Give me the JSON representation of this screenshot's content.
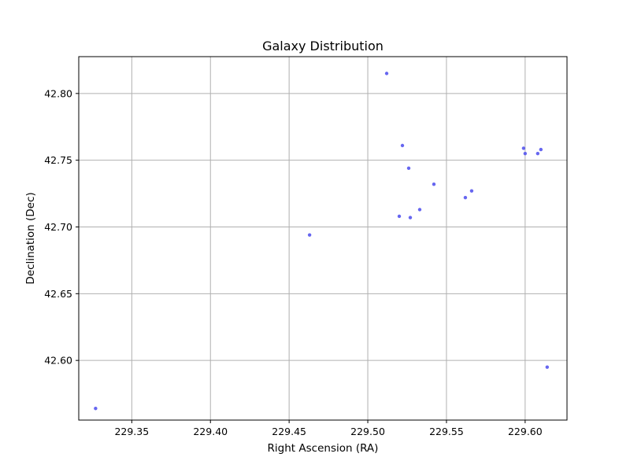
{
  "chart_data": {
    "type": "scatter",
    "title": "Galaxy Distribution",
    "xlabel": "Right Ascension (RA)",
    "ylabel": "Declination (Dec)",
    "xlim": [
      229.3163,
      229.6266
    ],
    "ylim": [
      42.5553,
      42.8276
    ],
    "grid": true,
    "marker_color": "#5555ee",
    "x_ticks": [
      {
        "value": 229.35,
        "label": "229.35"
      },
      {
        "value": 229.4,
        "label": "229.40"
      },
      {
        "value": 229.45,
        "label": "229.45"
      },
      {
        "value": 229.5,
        "label": "229.50"
      },
      {
        "value": 229.55,
        "label": "229.55"
      },
      {
        "value": 229.6,
        "label": "229.60"
      }
    ],
    "y_ticks": [
      {
        "value": 42.6,
        "label": "42.60"
      },
      {
        "value": 42.65,
        "label": "42.65"
      },
      {
        "value": 42.7,
        "label": "42.70"
      },
      {
        "value": 42.75,
        "label": "42.75"
      },
      {
        "value": 42.8,
        "label": "42.80"
      }
    ],
    "points": [
      {
        "x": 229.512,
        "y": 42.815
      },
      {
        "x": 229.522,
        "y": 42.761
      },
      {
        "x": 229.526,
        "y": 42.744
      },
      {
        "x": 229.542,
        "y": 42.732
      },
      {
        "x": 229.566,
        "y": 42.727
      },
      {
        "x": 229.562,
        "y": 42.722
      },
      {
        "x": 229.533,
        "y": 42.713
      },
      {
        "x": 229.52,
        "y": 42.708
      },
      {
        "x": 229.527,
        "y": 42.707
      },
      {
        "x": 229.463,
        "y": 42.694
      },
      {
        "x": 229.599,
        "y": 42.759
      },
      {
        "x": 229.6,
        "y": 42.755
      },
      {
        "x": 229.61,
        "y": 42.758
      },
      {
        "x": 229.608,
        "y": 42.755
      },
      {
        "x": 229.614,
        "y": 42.595
      },
      {
        "x": 229.327,
        "y": 42.564
      }
    ]
  }
}
